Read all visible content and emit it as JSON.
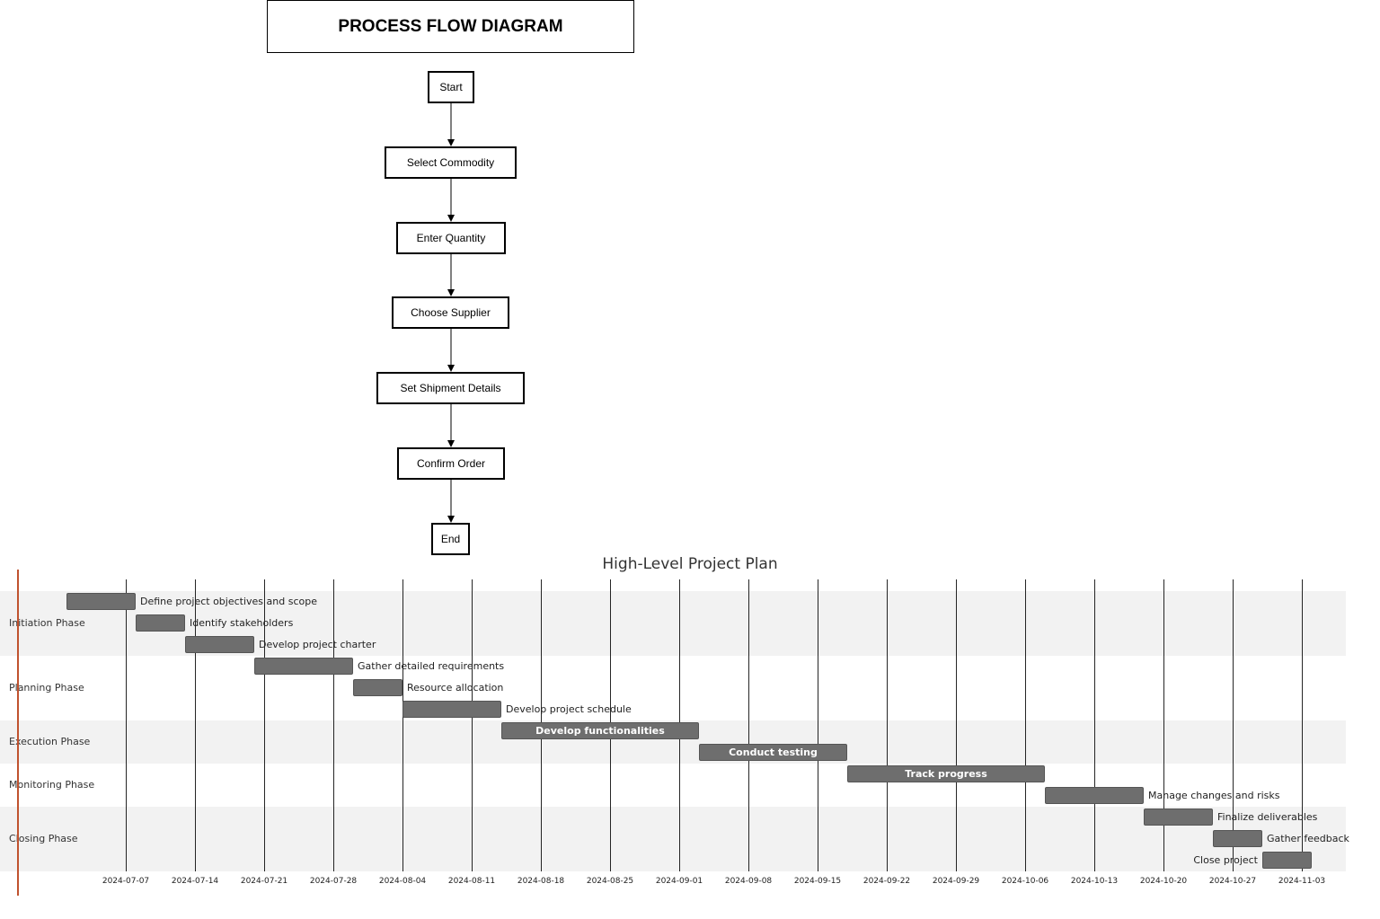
{
  "flow": {
    "title": "PROCESS FLOW DIAGRAM",
    "nodes": [
      "Start",
      "Select Commodity",
      "Enter Quantity",
      "Choose Supplier",
      "Set Shipment Details",
      "Confirm Order",
      "End"
    ]
  },
  "gantt": {
    "title": "High-Level Project Plan",
    "sections": [
      "Initiation Phase",
      "Planning Phase",
      "Execution Phase",
      "Monitoring Phase",
      "Closing Phase"
    ],
    "ticks": [
      "2024-07-07",
      "2024-07-14",
      "2024-07-21",
      "2024-07-28",
      "2024-08-04",
      "2024-08-11",
      "2024-08-18",
      "2024-08-25",
      "2024-09-01",
      "2024-09-08",
      "2024-09-15",
      "2024-09-22",
      "2024-09-29",
      "2024-10-06",
      "2024-10-13",
      "2024-10-20",
      "2024-10-27",
      "2024-11-03"
    ],
    "tasks": [
      {
        "name": "Define project objectives and scope",
        "section": 0,
        "start": "2024-07-01",
        "end": "2024-07-08"
      },
      {
        "name": "Identify stakeholders",
        "section": 0,
        "start": "2024-07-08",
        "end": "2024-07-13"
      },
      {
        "name": "Develop project charter",
        "section": 0,
        "start": "2024-07-13",
        "end": "2024-07-20"
      },
      {
        "name": "Gather detailed requirements",
        "section": 1,
        "start": "2024-07-20",
        "end": "2024-07-30"
      },
      {
        "name": "Resource allocation",
        "section": 1,
        "start": "2024-07-30",
        "end": "2024-08-04"
      },
      {
        "name": "Develop project schedule",
        "section": 1,
        "start": "2024-08-04",
        "end": "2024-08-14"
      },
      {
        "name": "Develop functionalities",
        "section": 2,
        "start": "2024-08-14",
        "end": "2024-09-03"
      },
      {
        "name": "Conduct testing",
        "section": 2,
        "start": "2024-09-03",
        "end": "2024-09-18"
      },
      {
        "name": "Track progress",
        "section": 3,
        "start": "2024-09-18",
        "end": "2024-10-08"
      },
      {
        "name": "Manage changes and risks",
        "section": 3,
        "start": "2024-10-08",
        "end": "2024-10-18"
      },
      {
        "name": "Finalize deliverables",
        "section": 4,
        "start": "2024-10-18",
        "end": "2024-10-25"
      },
      {
        "name": "Gather feedback",
        "section": 4,
        "start": "2024-10-25",
        "end": "2024-10-30"
      },
      {
        "name": "Close project",
        "section": 4,
        "start": "2024-10-30",
        "end": "2024-11-04"
      }
    ]
  }
}
